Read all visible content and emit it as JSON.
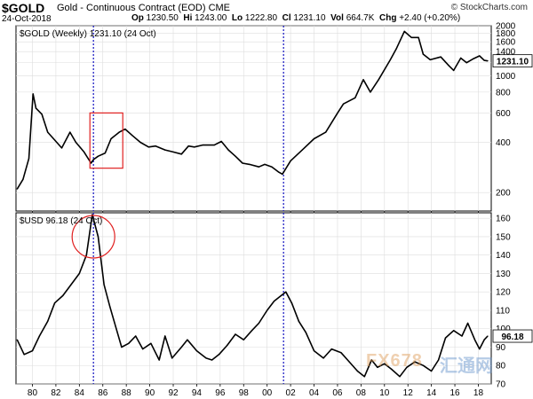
{
  "header": {
    "symbol": "$GOLD",
    "description": "Gold - Continuous Contract (EOD) CME",
    "date": "24-Oct-2018",
    "op_label": "Op",
    "op": "1230.50",
    "hi_label": "Hi",
    "hi": "1243.00",
    "lo_label": "Lo",
    "lo": "1222.80",
    "cl_label": "Cl",
    "cl": "1231.10",
    "vol_label": "Vol",
    "vol": "664.7K",
    "chg_label": "Chg",
    "chg": "+2.40 (+0.20%)",
    "logo": "© StockCharts.com"
  },
  "watermark": {
    "left": "FX678",
    "right": "汇通网"
  },
  "colors": {
    "line": "#000000",
    "marker": "#1010c0",
    "highlight": "#e02020",
    "grid": "#dddddd"
  },
  "chart_data": [
    {
      "type": "line",
      "legend": "$GOLD (Weekly) 1231.10 (24 Oct)",
      "last_value_label": "1231.10",
      "y_scale": "log",
      "ylim": [
        155,
        2000
      ],
      "y_ticks": [
        200,
        400,
        600,
        800,
        1000,
        1200,
        1400,
        1600,
        1800,
        2000
      ],
      "x_tick_labels": [
        "80",
        "82",
        "84",
        "86",
        "88",
        "90",
        "92",
        "94",
        "96",
        "98",
        "00",
        "02",
        "04",
        "06",
        "08",
        "10",
        "12",
        "14",
        "16",
        "18"
      ],
      "x_tick_years": [
        1980,
        1982,
        1984,
        1986,
        1988,
        1990,
        1992,
        1994,
        1996,
        1998,
        2000,
        2002,
        2004,
        2006,
        2008,
        2010,
        2012,
        2014,
        2016,
        2018
      ],
      "xlim": [
        1978.6,
        2019.1
      ],
      "x": [
        1978.7,
        1979.2,
        1979.7,
        1980.05,
        1980.3,
        1980.8,
        1981.3,
        1981.8,
        1982.5,
        1983.2,
        1983.7,
        1984.4,
        1985.0,
        1985.2,
        1985.6,
        1986.2,
        1986.7,
        1987.4,
        1987.9,
        1988.5,
        1989.2,
        1989.9,
        1990.5,
        1991.3,
        1992.0,
        1992.7,
        1993.3,
        1993.8,
        1994.5,
        1995.5,
        1996.1,
        1996.7,
        1997.3,
        1997.9,
        1998.5,
        1999.3,
        1999.8,
        2000.4,
        2001.0,
        2001.3,
        2002.0,
        2003.0,
        2004.0,
        2005.0,
        2006.0,
        2006.5,
        2007.5,
        2008.2,
        2008.8,
        2009.5,
        2010.5,
        2011.0,
        2011.7,
        2012.3,
        2012.9,
        2013.3,
        2013.9,
        2014.8,
        2015.5,
        2015.9,
        2016.5,
        2017.0,
        2017.6,
        2018.1,
        2018.5,
        2018.8
      ],
      "values": [
        210,
        240,
        320,
        780,
        640,
        590,
        460,
        420,
        370,
        460,
        400,
        350,
        300,
        315,
        330,
        345,
        420,
        460,
        480,
        440,
        400,
        375,
        380,
        360,
        350,
        340,
        380,
        375,
        385,
        385,
        405,
        360,
        330,
        300,
        295,
        285,
        295,
        285,
        265,
        258,
        310,
        360,
        420,
        460,
        600,
        680,
        740,
        950,
        800,
        950,
        1250,
        1450,
        1850,
        1700,
        1700,
        1350,
        1250,
        1300,
        1150,
        1080,
        1280,
        1200,
        1270,
        1320,
        1240,
        1231
      ],
      "vlines": [
        1985.2,
        2001.4
      ],
      "highlight_box": {
        "x0": 1984.9,
        "x1": 1987.7,
        "y0": 280,
        "y1": 600
      }
    },
    {
      "type": "line",
      "legend": "$USD 96.18 (24 Oct)",
      "last_value_label": "96.18",
      "ylim": [
        70,
        163
      ],
      "y_ticks": [
        70,
        80,
        90,
        100,
        110,
        120,
        130,
        140,
        150,
        160
      ],
      "x_tick_labels": [
        "80",
        "82",
        "84",
        "86",
        "88",
        "90",
        "92",
        "94",
        "96",
        "98",
        "00",
        "02",
        "04",
        "06",
        "08",
        "10",
        "12",
        "14",
        "16",
        "18"
      ],
      "x_tick_years": [
        1980,
        1982,
        1984,
        1986,
        1988,
        1990,
        1992,
        1994,
        1996,
        1998,
        2000,
        2002,
        2004,
        2006,
        2008,
        2010,
        2012,
        2014,
        2016,
        2018
      ],
      "xlim": [
        1978.6,
        2019.1
      ],
      "x": [
        1978.7,
        1979.3,
        1980.0,
        1980.6,
        1981.3,
        1981.9,
        1982.6,
        1983.3,
        1984.0,
        1984.6,
        1985.1,
        1985.6,
        1986.1,
        1986.6,
        1987.1,
        1987.6,
        1988.2,
        1988.8,
        1989.4,
        1990.1,
        1990.8,
        1991.3,
        1991.9,
        1992.7,
        1993.2,
        1994.0,
        1994.8,
        1995.3,
        1995.9,
        1996.6,
        1997.3,
        1998.0,
        1998.7,
        1999.3,
        2000.0,
        2000.6,
        2001.2,
        2001.6,
        2002.1,
        2002.7,
        2003.3,
        2004.0,
        2004.8,
        2005.5,
        2006.3,
        2007.0,
        2007.7,
        2008.3,
        2008.9,
        2009.4,
        2010.0,
        2010.6,
        2011.3,
        2011.9,
        2012.6,
        2013.3,
        2014.0,
        2014.6,
        2015.2,
        2015.9,
        2016.6,
        2017.1,
        2017.7,
        2018.1,
        2018.5,
        2018.8
      ],
      "values": [
        94,
        86,
        88,
        96,
        104,
        114,
        118,
        124,
        130,
        140,
        162,
        150,
        124,
        112,
        101,
        90,
        92,
        96,
        89,
        92,
        83,
        96,
        84,
        90,
        94,
        88,
        84,
        83,
        86,
        91,
        97,
        94,
        99,
        103,
        110,
        115,
        118,
        120,
        114,
        104,
        98,
        88,
        84,
        89,
        87,
        82,
        77,
        74,
        83,
        79,
        81,
        78,
        74,
        79,
        82,
        80,
        77,
        83,
        95,
        99,
        96,
        103,
        94,
        89,
        94,
        96
      ],
      "vlines": [
        1985.2,
        2001.4
      ],
      "highlight_circle": {
        "x": 1985.2,
        "y": 150
      }
    }
  ]
}
